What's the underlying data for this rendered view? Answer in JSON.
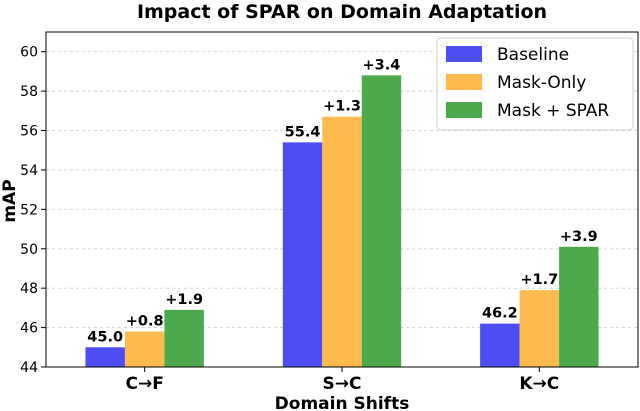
{
  "chart_data": {
    "type": "bar",
    "title": "Impact of SPAR on Domain Adaptation",
    "xlabel": "Domain Shifts",
    "ylabel": "mAP",
    "ylim": [
      44,
      61
    ],
    "yticks": [
      44,
      46,
      48,
      50,
      52,
      54,
      56,
      58,
      60
    ],
    "grid": true,
    "legend_position": "top-right",
    "categories": [
      "C→F",
      "S→C",
      "K→C"
    ],
    "series": [
      {
        "name": "Baseline",
        "color": "#4d4df5",
        "values": [
          45.0,
          55.4,
          46.2
        ],
        "labels": [
          "45.0",
          "55.4",
          "46.2"
        ]
      },
      {
        "name": "Mask-Only",
        "color": "#fdbb4d",
        "values": [
          45.8,
          56.7,
          47.9
        ],
        "labels": [
          "+0.8",
          "+1.3",
          "+1.7"
        ]
      },
      {
        "name": "Mask + SPAR",
        "color": "#4caa4c",
        "values": [
          46.9,
          58.8,
          50.1
        ],
        "labels": [
          "+1.9",
          "+3.4",
          "+3.9"
        ]
      }
    ]
  }
}
